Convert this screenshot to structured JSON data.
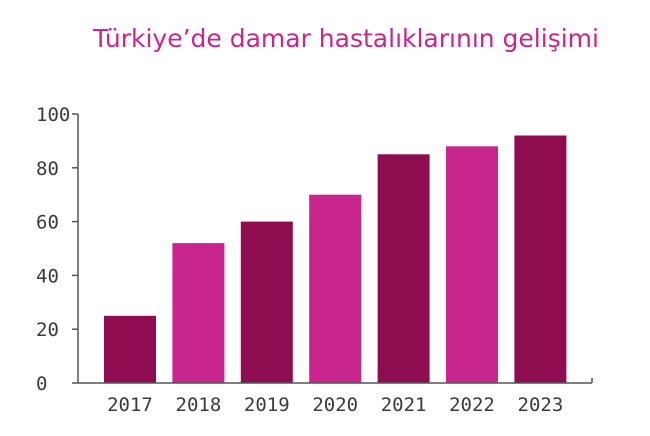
{
  "chart_data": {
    "type": "bar",
    "title": "Türkiye’de damar hastalıklarının gelişimi",
    "xlabel": "",
    "ylabel": "",
    "categories": [
      "2017",
      "2018",
      "2019",
      "2020",
      "2021",
      "2022",
      "2023"
    ],
    "values": [
      25,
      52,
      60,
      70,
      85,
      88,
      92
    ],
    "ylim": [
      0,
      100
    ],
    "yticks": [
      "0",
      "20",
      "40",
      "60",
      "80",
      "100"
    ],
    "grid": false,
    "legend": "none",
    "colors": {
      "title": "#c8258d",
      "bar_dark": "#8e0c50",
      "bar_light": "#c8258d",
      "axis": "#555555",
      "bar_colors": [
        "#8e0c50",
        "#c8258d",
        "#8e0c50",
        "#c8258d",
        "#8e0c50",
        "#c8258d",
        "#8e0c50"
      ]
    }
  }
}
